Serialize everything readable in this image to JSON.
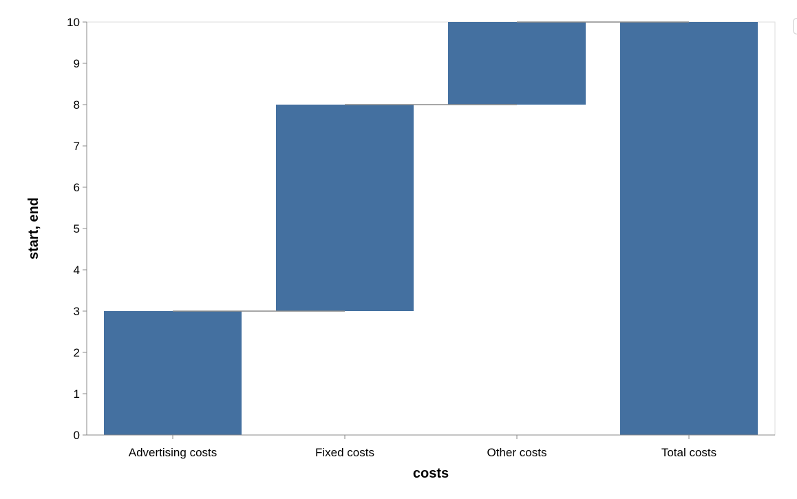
{
  "chart_data": {
    "type": "bar",
    "subtype": "waterfall",
    "categories": [
      "Advertising costs",
      "Fixed costs",
      "Other costs",
      "Total costs"
    ],
    "start": [
      0,
      3,
      8,
      0
    ],
    "end": [
      3,
      8,
      10,
      10
    ],
    "xlabel": "costs",
    "ylabel": "start, end",
    "ylim": [
      0,
      10
    ],
    "yticks": [
      0,
      1,
      2,
      3,
      4,
      5,
      6,
      7,
      8,
      9,
      10
    ],
    "grid": false,
    "connectors": true,
    "bar_color": "#4470a0",
    "connector_color": "#8a8a8a",
    "axis_color": "#888888",
    "frame_color": "#dddddd"
  }
}
